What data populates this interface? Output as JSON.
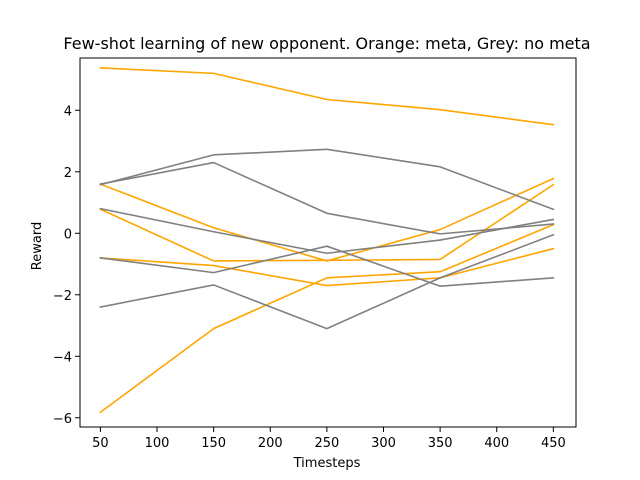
{
  "chart_data": {
    "type": "line",
    "title": "Few-shot learning of new opponent. Orange: meta, Grey: no meta",
    "xlabel": "Timesteps",
    "ylabel": "Reward",
    "x": [
      50,
      150,
      250,
      350,
      450
    ],
    "xlim": [
      32,
      470
    ],
    "ylim": [
      -6.3,
      5.7
    ],
    "xticks": [
      50,
      100,
      150,
      200,
      250,
      300,
      350,
      400,
      450
    ],
    "yticks": [
      -6,
      -4,
      -2,
      0,
      2,
      4
    ],
    "ytick_labels": [
      "−6",
      "−4",
      "−2",
      "0",
      "2",
      "4"
    ],
    "grid": false,
    "colors": {
      "meta": "#ffa500",
      "no_meta": "#808080"
    },
    "series": [
      {
        "group": "meta",
        "values": [
          5.38,
          5.2,
          4.35,
          4.02,
          3.53
        ]
      },
      {
        "group": "meta",
        "values": [
          1.6,
          0.18,
          -0.9,
          0.12,
          1.78
        ]
      },
      {
        "group": "meta",
        "values": [
          0.78,
          -0.9,
          -0.88,
          -0.85,
          1.58
        ]
      },
      {
        "group": "meta",
        "values": [
          -0.8,
          -1.05,
          -1.7,
          -1.45,
          -0.5
        ]
      },
      {
        "group": "meta",
        "values": [
          -5.82,
          -3.1,
          -1.45,
          -1.25,
          0.28
        ]
      },
      {
        "group": "no_meta",
        "values": [
          1.58,
          2.55,
          2.73,
          2.16,
          0.78
        ]
      },
      {
        "group": "no_meta",
        "values": [
          1.6,
          2.3,
          0.65,
          -0.02,
          0.3
        ]
      },
      {
        "group": "no_meta",
        "values": [
          0.8,
          0.05,
          -0.65,
          -0.22,
          0.45
        ]
      },
      {
        "group": "no_meta",
        "values": [
          -0.8,
          -1.28,
          -0.42,
          -1.72,
          -1.45
        ]
      },
      {
        "group": "no_meta",
        "values": [
          -2.4,
          -1.68,
          -3.1,
          -1.45,
          -0.05
        ]
      }
    ]
  }
}
